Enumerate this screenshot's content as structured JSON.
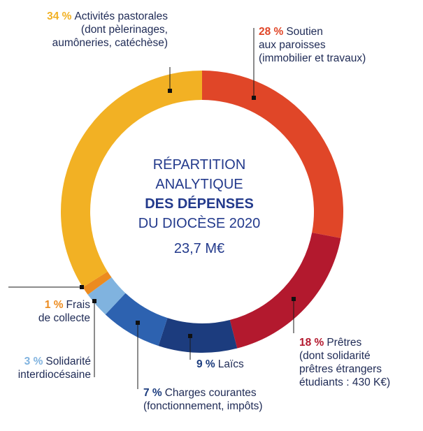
{
  "colors": {
    "pastorales": "#f2b124",
    "paroisses": "#e04628",
    "pretres": "#b3192e",
    "laics": "#1c3c7e",
    "charges": "#2d62b0",
    "solidarite": "#80b3df",
    "frais": "#ec8b1f",
    "text": "#1e2a55",
    "center": "#233a8c"
  },
  "center": {
    "line1": "RÉPARTITION",
    "line2": "ANALYTIQUE",
    "line3": "DES DÉPENSES",
    "line4": "DU DIOCÈSE 2020",
    "total": "23,7 M€"
  },
  "chart_data": {
    "type": "pie",
    "title": "RÉPARTITION ANALYTIQUE DES DÉPENSES DU DIOCÈSE 2020",
    "total": "23,7 M€",
    "slices": [
      {
        "key": "paroisses",
        "pct_label": "28 %",
        "value": 28,
        "label_lines": [
          "Soutien",
          "aux paroisses",
          "(immobilier et travaux)"
        ]
      },
      {
        "key": "pretres",
        "pct_label": "18 %",
        "value": 18,
        "label_lines": [
          "Prêtres",
          "(dont solidarité",
          "prêtres étrangers",
          "étudiants : 430 K€)"
        ]
      },
      {
        "key": "laics",
        "pct_label": "9 %",
        "value": 9,
        "label_lines": [
          "Laïcs"
        ]
      },
      {
        "key": "charges",
        "pct_label": "7 %",
        "value": 7,
        "label_lines": [
          "Charges courantes",
          "(fonctionnement, impôts)"
        ]
      },
      {
        "key": "solidarite",
        "pct_label": "3 %",
        "value": 3,
        "label_lines": [
          "Solidarité",
          "interdiocésaine"
        ]
      },
      {
        "key": "frais",
        "pct_label": "1 %",
        "value": 1,
        "label_lines": [
          "Frais",
          "de collecte"
        ]
      },
      {
        "key": "pastorales",
        "pct_label": "34 %",
        "value": 34,
        "label_lines": [
          "Activités pastorales",
          "(dont pèlerinages,",
          "aumôneries, catéchèse)"
        ]
      }
    ]
  }
}
